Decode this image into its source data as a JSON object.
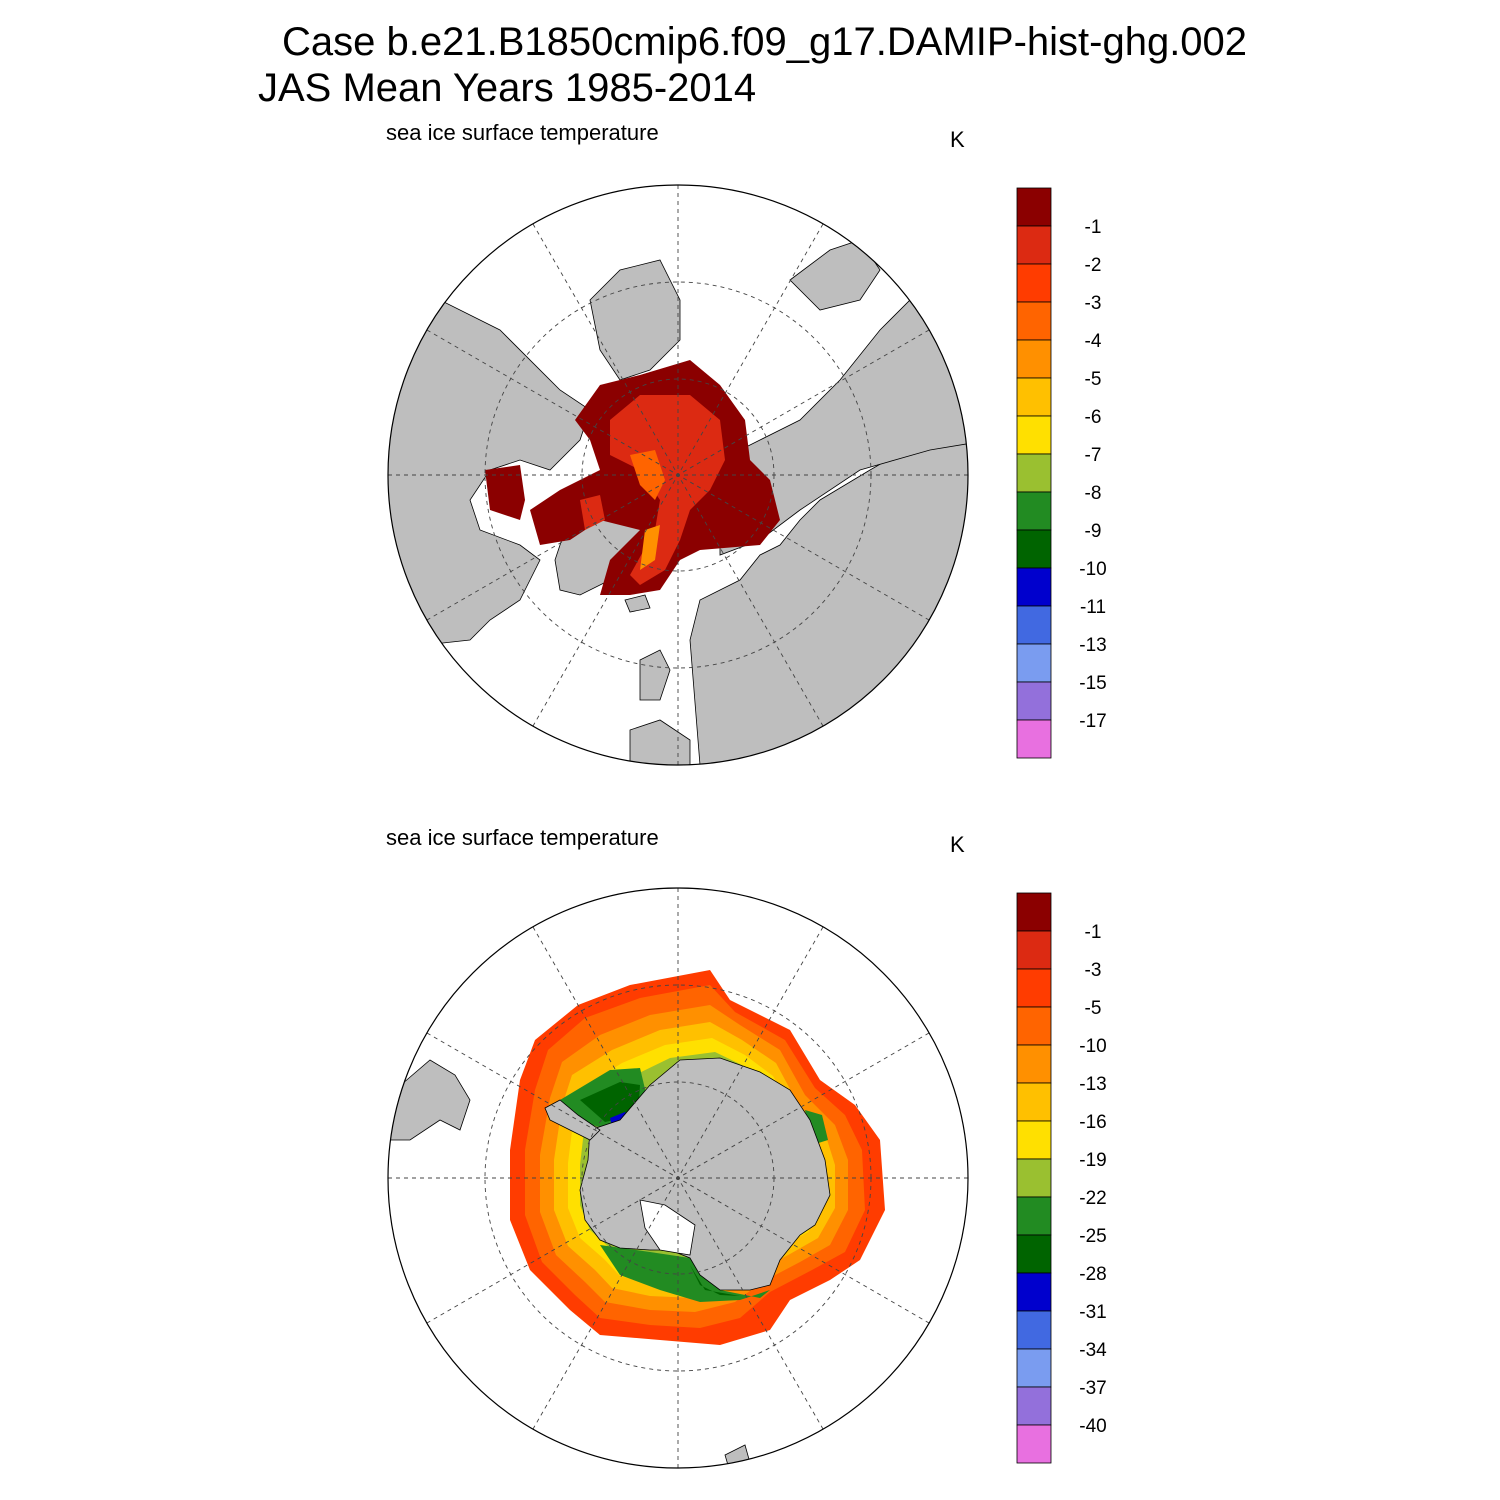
{
  "header": {
    "line1": "Case b.e21.B1850cmip6.f09_g17.DAMIP-hist-ghg.002",
    "line2": "JAS Mean   Years 1985-2014"
  },
  "panels": [
    {
      "hemisphere": "north",
      "variable_label": "sea ice surface temperature",
      "units": "K",
      "colorbar": {
        "labels": [
          "-1",
          "-2",
          "-3",
          "-4",
          "-5",
          "-6",
          "-7",
          "-8",
          "-9",
          "-10",
          "-11",
          "-13",
          "-15",
          "-17"
        ],
        "colors": [
          "#8b0000",
          "#dc2a12",
          "#ff3c00",
          "#ff6400",
          "#ff9000",
          "#ffc000",
          "#ffe000",
          "#9ac030",
          "#228b22",
          "#006400",
          "#0000cd",
          "#4169e1",
          "#7a9cf0",
          "#9370db",
          "#e870e0"
        ]
      }
    },
    {
      "hemisphere": "south",
      "variable_label": "sea ice surface temperature",
      "units": "K",
      "colorbar": {
        "labels": [
          "-1",
          "-3",
          "-5",
          "-10",
          "-13",
          "-16",
          "-19",
          "-22",
          "-25",
          "-28",
          "-31",
          "-34",
          "-37",
          "-40"
        ],
        "colors": [
          "#8b0000",
          "#dc2a12",
          "#ff3c00",
          "#ff6400",
          "#ff9000",
          "#ffc000",
          "#ffe000",
          "#9ac030",
          "#228b22",
          "#006400",
          "#0000cd",
          "#4169e1",
          "#7a9cf0",
          "#9370db",
          "#e870e0"
        ]
      }
    }
  ],
  "colors": {
    "land": "#bebebe",
    "ocean": "#ffffff"
  }
}
